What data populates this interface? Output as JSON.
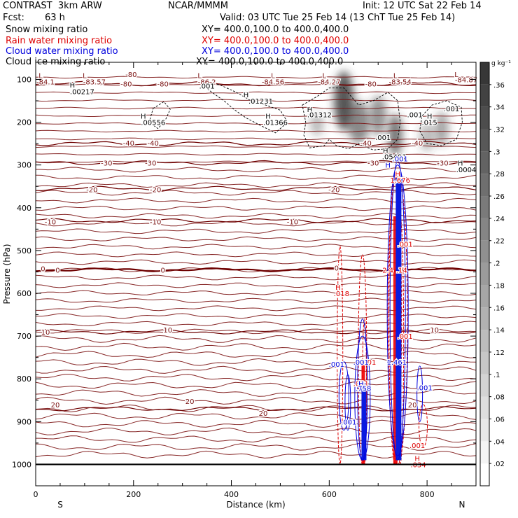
{
  "header": {
    "title": "CONTRAST  3km ARW",
    "center": "NCAR/MMMM",
    "init": "Init: 12 UTC Sat 22 Feb 14",
    "fcst_label": "Fcst:",
    "fcst_value": "63 h",
    "valid": "Valid: 03 UTC Tue 25 Feb 14 (13 ChT Tue 25 Feb 14)"
  },
  "fields": [
    {
      "label": "Snow mixing ratio",
      "xy": "XY= 400.0,100.0 to 400.0,400.0",
      "color": "#000000"
    },
    {
      "label": "Rain water mixing ratio",
      "xy": "XY= 400.0,100.0 to 400.0,400.0",
      "color": "#dd0000"
    },
    {
      "label": "Cloud water mixing ratio",
      "xy": "XY= 400.0,100.0 to 400.0,400.0",
      "color": "#0000dd"
    },
    {
      "label": "Cloud ice mixing ratio",
      "xy": "XY= 400.0,100.0 to 400.0,400.0",
      "color": "#000000"
    }
  ],
  "chart_data": {
    "type": "contour-cross-section",
    "xlabel": "Distance (km)",
    "ylabel": "Pressure (hPa)",
    "xlim": [
      0,
      900
    ],
    "ylim": [
      1050,
      60
    ],
    "x_ticks": [
      0,
      200,
      400,
      600,
      800
    ],
    "y_ticks": [
      100,
      200,
      300,
      400,
      500,
      600,
      700,
      800,
      900,
      1000
    ],
    "x_end_labels": {
      "left": "S",
      "right": "N"
    },
    "colorbar": {
      "unit": "g kg⁻¹",
      "ticks": [
        0.02,
        0.04,
        0.06,
        0.08,
        0.1,
        0.12,
        0.14,
        0.16,
        0.18,
        0.2,
        0.22,
        0.24,
        0.26,
        0.28,
        0.3,
        0.32,
        0.34,
        0.36
      ],
      "tick_labels": [
        ".02",
        ".04",
        ".06",
        ".08",
        ".1",
        ".12",
        ".14",
        ".16",
        ".18",
        ".2",
        ".22",
        ".24",
        ".26",
        ".28",
        ".3",
        ".32",
        ".34",
        ".36"
      ],
      "max": 0.38
    },
    "temperature_contours": [
      {
        "value": -80,
        "p": 110
      },
      {
        "value": -40,
        "p": 250
      },
      {
        "value": -30,
        "p": 295
      },
      {
        "value": -20,
        "p": 355
      },
      {
        "value": -10,
        "p": 430
      },
      {
        "value": 0,
        "p": 545
      },
      {
        "value": 10,
        "p": 690
      },
      {
        "value": 20,
        "p": 870
      }
    ],
    "temperature_labels": [
      {
        "text": "-80",
        "x": 195,
        "p": 88
      },
      {
        "text": "-80",
        "x": 185,
        "p": 110
      },
      {
        "text": "-80",
        "x": 260,
        "p": 110
      },
      {
        "text": "-80",
        "x": 685,
        "p": 110
      },
      {
        "text": "-40",
        "x": 190,
        "p": 248
      },
      {
        "text": "-40",
        "x": 240,
        "p": 248
      },
      {
        "text": "-40",
        "x": 675,
        "p": 248
      },
      {
        "text": "-40",
        "x": 780,
        "p": 248
      },
      {
        "text": "-30",
        "x": 145,
        "p": 295
      },
      {
        "text": "-30",
        "x": 235,
        "p": 295
      },
      {
        "text": "-30",
        "x": 690,
        "p": 295
      },
      {
        "text": "-30",
        "x": 832,
        "p": 295
      },
      {
        "text": "-20",
        "x": 115,
        "p": 357
      },
      {
        "text": "-20",
        "x": 245,
        "p": 357
      },
      {
        "text": "-20",
        "x": 610,
        "p": 357
      },
      {
        "text": "-10",
        "x": 30,
        "p": 432
      },
      {
        "text": "-10",
        "x": 245,
        "p": 432
      },
      {
        "text": "-10",
        "x": 525,
        "p": 432
      },
      {
        "text": "0",
        "x": 15,
        "p": 542
      },
      {
        "text": "0",
        "x": 45,
        "p": 545
      },
      {
        "text": "0",
        "x": 260,
        "p": 545
      },
      {
        "text": "0",
        "x": 615,
        "p": 540
      },
      {
        "text": "10",
        "x": 20,
        "p": 690
      },
      {
        "text": "10",
        "x": 270,
        "p": 685
      },
      {
        "text": "10",
        "x": 815,
        "p": 685
      },
      {
        "text": "20",
        "x": 40,
        "p": 860
      },
      {
        "text": "20",
        "x": 315,
        "p": 852
      },
      {
        "text": "20",
        "x": 465,
        "p": 880
      },
      {
        "text": "20",
        "x": 770,
        "p": 860
      }
    ],
    "extrema_labels": [
      {
        "text": "L",
        "x": 10,
        "p": 90
      },
      {
        "text": "-84.1",
        "x": 20,
        "p": 105
      },
      {
        "text": "L",
        "x": 100,
        "p": 90
      },
      {
        "text": "-83.57",
        "x": 120,
        "p": 105
      },
      {
        "text": "H",
        "x": 75,
        "p": 112
      },
      {
        "text": ".00217",
        "x": 95,
        "p": 128
      },
      {
        "text": "L",
        "x": 335,
        "p": 90
      },
      {
        "text": "-86.2",
        "x": 350,
        "p": 105
      },
      {
        "text": ".001",
        "x": 350,
        "p": 115
      },
      {
        "text": "L",
        "x": 485,
        "p": 90
      },
      {
        "text": "-84.56",
        "x": 485,
        "p": 105
      },
      {
        "text": "L",
        "x": 590,
        "p": 90
      },
      {
        "text": "-84.27",
        "x": 600,
        "p": 105
      },
      {
        "text": "L",
        "x": 735,
        "p": 90
      },
      {
        "text": "-83.54",
        "x": 745,
        "p": 105
      },
      {
        "text": "L",
        "x": 860,
        "p": 88
      },
      {
        "text": "-84.87",
        "x": 880,
        "p": 100
      },
      {
        "text": "H",
        "x": 430,
        "p": 135
      },
      {
        "text": ".01231",
        "x": 460,
        "p": 150
      },
      {
        "text": "H",
        "x": 220,
        "p": 185
      },
      {
        "text": ".00556",
        "x": 240,
        "p": 200
      },
      {
        "text": "H",
        "x": 475,
        "p": 185
      },
      {
        "text": ".01366",
        "x": 490,
        "p": 200
      },
      {
        "text": "H",
        "x": 560,
        "p": 170
      },
      {
        "text": ".01312",
        "x": 580,
        "p": 182
      },
      {
        "text": ".001",
        "x": 775,
        "p": 182
      },
      {
        "text": "H",
        "x": 805,
        "p": 185
      },
      {
        "text": ".015",
        "x": 805,
        "p": 200
      },
      {
        "text": ".001",
        "x": 850,
        "p": 168
      },
      {
        "text": ".001",
        "x": 710,
        "p": 235
      },
      {
        "text": "H",
        "x": 715,
        "p": 265
      },
      {
        "text": ".05491",
        "x": 733,
        "p": 280
      },
      {
        "text": "H",
        "x": 868,
        "p": 295
      },
      {
        "text": ".0004",
        "x": 880,
        "p": 310
      }
    ],
    "rain_labels": [
      {
        "text": "H",
        "x": 740,
        "p": 320
      },
      {
        "text": "1.676",
        "x": 745,
        "p": 335
      },
      {
        "text": "H",
        "x": 618,
        "p": 585
      },
      {
        "text": ".018",
        "x": 625,
        "p": 600
      },
      {
        "text": ".001",
        "x": 755,
        "p": 485
      },
      {
        "text": "2.4",
        "x": 720,
        "p": 545
      },
      {
        "text": ".14",
        "x": 748,
        "p": 545
      },
      {
        "text": ".001",
        "x": 755,
        "p": 700
      },
      {
        "text": ".001",
        "x": 680,
        "p": 760
      },
      {
        "text": ".001",
        "x": 665,
        "p": 810
      },
      {
        "text": ".001",
        "x": 780,
        "p": 955
      },
      {
        "text": "H",
        "x": 780,
        "p": 985
      },
      {
        "text": ".034",
        "x": 782,
        "p": 1000
      }
    ],
    "cloud_water_labels": [
      {
        "text": "H",
        "x": 720,
        "p": 300
      },
      {
        "text": ".001",
        "x": 745,
        "p": 285
      },
      {
        "text": ".001",
        "x": 615,
        "p": 765
      },
      {
        "text": ".001",
        "x": 665,
        "p": 760
      },
      {
        "text": "H",
        "x": 665,
        "p": 810
      },
      {
        "text": ".758",
        "x": 670,
        "p": 822
      },
      {
        "text": "1.461",
        "x": 738,
        "p": 760
      },
      {
        "text": ".001",
        "x": 795,
        "p": 820
      },
      {
        "text": ".001",
        "x": 640,
        "p": 900
      }
    ]
  }
}
